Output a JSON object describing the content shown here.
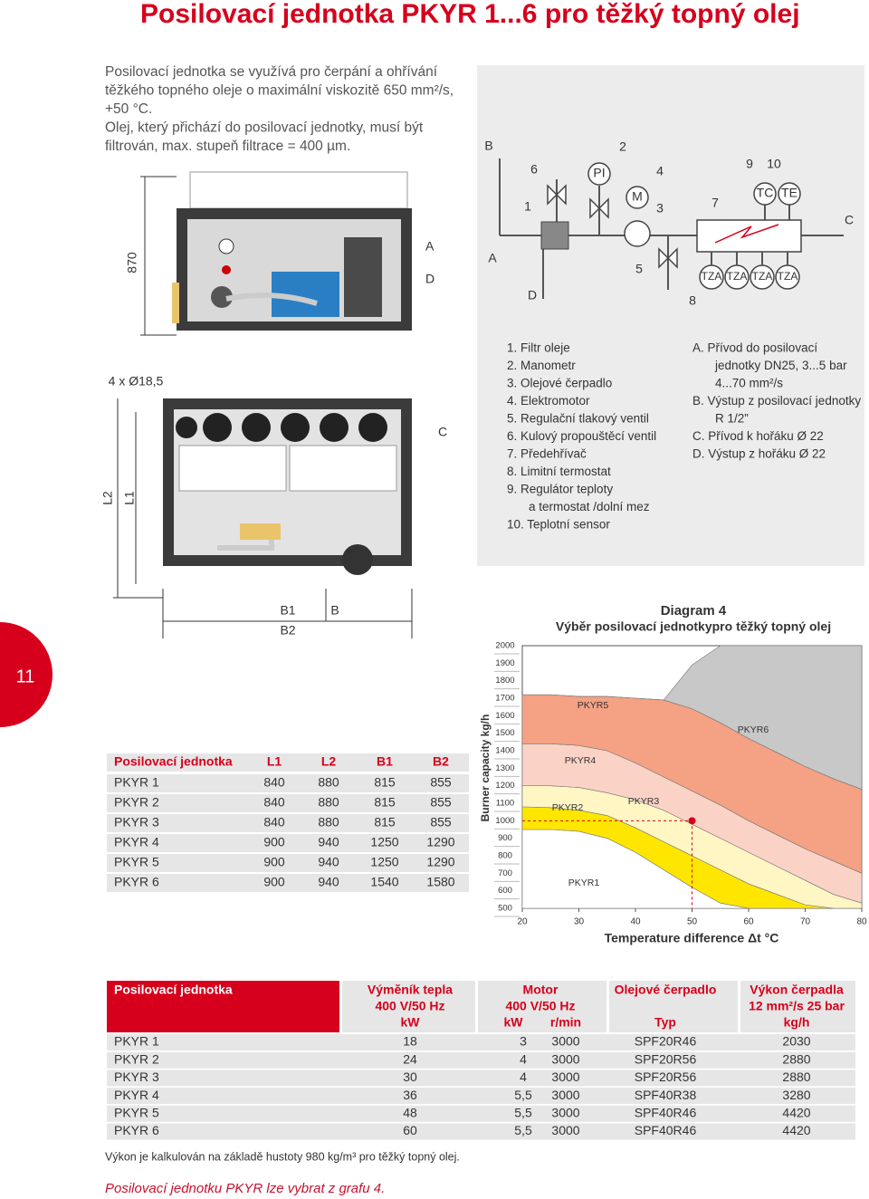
{
  "title": "Posilovací jednotka PKYR 1...6 pro těžký topný olej",
  "intro": [
    "Posilovací jednotka se využívá pro čerpání a ohřívání",
    "těžkého topného oleje o maximální viskozitě 650 mm²/s,",
    "+50 °C.",
    "Olej, který přichází do posilovací jednotky, musí být",
    "filtrován, max. stupeň filtrace = 400 µm."
  ],
  "front_view": {
    "height": "870",
    "labels": [
      "A",
      "D"
    ]
  },
  "top_view": {
    "labels": [
      "4 x Ø18,5",
      "C",
      "L2",
      "L1",
      "B1",
      "B",
      "B2"
    ]
  },
  "schematic": {
    "labels": [
      "B",
      "2",
      "6",
      "PI",
      "4",
      "9",
      "10",
      "1",
      "M",
      "3",
      "7",
      "TC",
      "TE",
      "C",
      "A",
      "5",
      "D",
      "TZA",
      "TZA",
      "TZA",
      "TZA",
      "8"
    ]
  },
  "legend": {
    "numbered": [
      [
        "1. Filtr oleje"
      ],
      [
        "2. Manometr"
      ],
      [
        "3. Olejové čerpadlo"
      ],
      [
        "4. Elektromotor"
      ],
      [
        "5. Regulační tlakový ventil"
      ],
      [
        "6. Kulový propouštěcí ventil"
      ],
      [
        "7. Předehřívač"
      ],
      [
        "8. Limitní termostat"
      ],
      [
        "9. Regulátor teploty",
        "a termostat /dolní mez"
      ],
      [
        "10. Teplotní sensor"
      ]
    ],
    "lettered": [
      [
        "A. Přívod do posilovací",
        "jednotky DN25, 3...5 bar",
        "4...70 mm²/s"
      ],
      [
        "B. Výstup z posilovací jednotky",
        "R 1/2”"
      ],
      [
        "C. Přívod k hořáku Ø 22"
      ],
      [
        "D. Výstup z hořáku Ø 22"
      ]
    ]
  },
  "page_number": "11",
  "dimensions_table": {
    "header": [
      "Posilovací jednotka",
      "L1",
      "L2",
      "B1",
      "B2"
    ],
    "rows": [
      [
        "PKYR 1",
        "840",
        "880",
        "815",
        "855"
      ],
      [
        "PKYR 2",
        "840",
        "880",
        "815",
        "855"
      ],
      [
        "PKYR 3",
        "840",
        "880",
        "815",
        "855"
      ],
      [
        "PKYR 4",
        "900",
        "940",
        "1250",
        "1290"
      ],
      [
        "PKYR 5",
        "900",
        "940",
        "1250",
        "1290"
      ],
      [
        "PKYR 6",
        "900",
        "940",
        "1540",
        "1580"
      ]
    ]
  },
  "chart_data": {
    "type": "area",
    "title": "Diagram 4",
    "subtitle": "Výběr posilovací jednotkypro těžký topný olej",
    "x_label": "Temperature difference Δt °C",
    "y_label": "Burner capacity kg/h",
    "x": [
      20,
      25,
      30,
      35,
      40,
      45,
      50,
      55,
      60,
      65,
      70,
      75,
      80
    ],
    "series": [
      {
        "name": "PKYR1",
        "color": "#ffffff",
        "values": [
          950,
          950,
          940,
          900,
          820,
          720,
          620,
          530,
          500,
          500,
          500,
          500,
          500
        ]
      },
      {
        "name": "PKYR2",
        "color": "#ffe600",
        "values": [
          1080,
          1075,
          1060,
          1030,
          960,
          880,
          800,
          720,
          640,
          580,
          520,
          500,
          500
        ]
      },
      {
        "name": "PKYR3",
        "color": "#fff6c4",
        "values": [
          1200,
          1200,
          1190,
          1160,
          1120,
          1060,
          980,
          900,
          820,
          740,
          660,
          580,
          530
        ]
      },
      {
        "name": "PKYR4",
        "color": "#fbd3c6",
        "values": [
          1440,
          1440,
          1430,
          1400,
          1330,
          1250,
          1170,
          1090,
          1000,
          920,
          840,
          770,
          700
        ]
      },
      {
        "name": "PKYR5",
        "color": "#f4a184",
        "values": [
          1720,
          1720,
          1710,
          1710,
          1700,
          1690,
          1640,
          1560,
          1470,
          1390,
          1310,
          1240,
          1180
        ]
      },
      {
        "name": "PKYR6",
        "color": "#c8c8c8",
        "values": [
          1720,
          1720,
          1710,
          1710,
          1700,
          1690,
          1890,
          2000,
          2000,
          2000,
          2000,
          2000,
          2000
        ]
      }
    ],
    "marker": {
      "x": 50,
      "y": 1000,
      "color": "#d6001c"
    },
    "xlim": [
      20,
      80
    ],
    "ylim": [
      500,
      2000
    ],
    "xticks": [
      20,
      30,
      40,
      50,
      60,
      70,
      80
    ],
    "yticks": [
      500,
      600,
      700,
      800,
      900,
      1000,
      1100,
      1200,
      1300,
      1400,
      1500,
      1600,
      1700,
      1800,
      1900,
      2000
    ]
  },
  "performance_table": {
    "header_rows": [
      [
        "Posilovací jednotka",
        "Výměník tepla",
        "Motor",
        "Olejové čerpadlo",
        "Výkon čerpadla"
      ],
      [
        "400 V/50 Hz",
        "400 V/50 Hz",
        "12 mm²/s 25 bar"
      ],
      [
        "kW",
        "kW",
        "r/min",
        "Typ",
        "kg/h"
      ]
    ],
    "rows": [
      [
        "PKYR 1",
        "18",
        "3",
        "3000",
        "SPF20R46",
        "2030"
      ],
      [
        "PKYR 2",
        "24",
        "4",
        "3000",
        "SPF20R56",
        "2880"
      ],
      [
        "PKYR 3",
        "30",
        "4",
        "3000",
        "SPF20R56",
        "2880"
      ],
      [
        "PKYR 4",
        "36",
        "5,5",
        "3000",
        "SPF40R38",
        "3280"
      ],
      [
        "PKYR 5",
        "48",
        "5,5",
        "3000",
        "SPF40R46",
        "4420"
      ],
      [
        "PKYR 6",
        "60",
        "5,5",
        "3000",
        "SPF40R46",
        "4420"
      ]
    ]
  },
  "footnote": "Výkon je kalkulován na základě hustoty 980 kg/m³ pro těžký topný olej.",
  "selection_note": "Posilovací jednotku PKYR lze vybrat z grafu 4."
}
